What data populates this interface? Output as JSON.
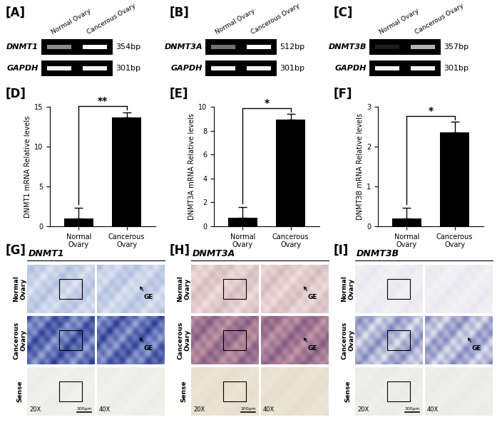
{
  "gels": [
    {
      "panel": "[A]",
      "lanes": [
        "Normal Ovary",
        "Cancerous Ovary"
      ],
      "rows": [
        {
          "gene": "DNMT1",
          "size": "354bp"
        },
        {
          "gene": "GAPDH",
          "size": "301bp"
        }
      ]
    },
    {
      "panel": "[B]",
      "lanes": [
        "Normal Ovary",
        "Cancerous Ovary"
      ],
      "rows": [
        {
          "gene": "DNMT3A",
          "size": "512bp"
        },
        {
          "gene": "GAPDH",
          "size": "301bp"
        }
      ]
    },
    {
      "panel": "[C]",
      "lanes": [
        "Normal Ovary",
        "Cancerous Ovary"
      ],
      "rows": [
        {
          "gene": "DNMT3B",
          "size": "357bp"
        },
        {
          "gene": "GAPDH",
          "size": "301bp"
        }
      ]
    }
  ],
  "chart_data": [
    {
      "panel": "[D]",
      "type": "bar",
      "categories": [
        "Normal\nOvary",
        "Cancerous\nOvary"
      ],
      "values": [
        1.0,
        13.7
      ],
      "errors": [
        1.3,
        0.6
      ],
      "color": "#000000",
      "y_label": "DNMT1 mRNA Relative levels",
      "ylim": [
        0,
        15
      ],
      "yticks": [
        0,
        5,
        10,
        15
      ],
      "significance": "**"
    },
    {
      "panel": "[E]",
      "type": "bar",
      "categories": [
        "Normal\nOvary",
        "Cancerous\nOvary"
      ],
      "values": [
        0.7,
        8.9
      ],
      "errors": [
        0.9,
        0.5
      ],
      "color": "#000000",
      "y_label": "DNMT3A mRNA Relative levels",
      "ylim": [
        0,
        10
      ],
      "yticks": [
        0,
        2,
        4,
        6,
        8,
        10
      ],
      "significance": "*"
    },
    {
      "panel": "[F]",
      "type": "bar",
      "categories": [
        "Normal\nOvary",
        "Cancerous\nOvary"
      ],
      "values": [
        0.2,
        2.35
      ],
      "errors": [
        0.27,
        0.27
      ],
      "color": "#000000",
      "y_label": "DNMT3B mRNA Relative levels",
      "ylim": [
        0,
        3
      ],
      "yticks": [
        0,
        1,
        2,
        3
      ],
      "significance": "*"
    }
  ],
  "ish": [
    {
      "panel": "[G]",
      "title": "DNMT1",
      "magnifications": [
        "20X",
        "40X"
      ],
      "scale_bar": "100μm",
      "rows": [
        {
          "label": "Normal\nOvary",
          "notes": [
            "GE"
          ]
        },
        {
          "label": "Cancerous\nOvary",
          "notes": [
            "GE"
          ]
        },
        {
          "label": "Sense",
          "notes": []
        }
      ]
    },
    {
      "panel": "[H]",
      "title": "DNMT3A",
      "magnifications": [
        "20X",
        "40X"
      ],
      "scale_bar": "100μm",
      "rows": [
        {
          "label": "Normal\nOvary",
          "notes": [
            "GE"
          ]
        },
        {
          "label": "Cancerous\nOvary",
          "notes": [
            "GE"
          ]
        },
        {
          "label": "Sense",
          "notes": []
        }
      ]
    },
    {
      "panel": "[I]",
      "title": "DNMT3B",
      "magnifications": [
        "20X",
        "40X"
      ],
      "scale_bar": "100μm",
      "rows": [
        {
          "label": "Normal\nOvary",
          "notes": []
        },
        {
          "label": "Cancerous\nOvary",
          "notes": [
            "GE"
          ]
        },
        {
          "label": "Sense",
          "notes": []
        }
      ]
    }
  ]
}
